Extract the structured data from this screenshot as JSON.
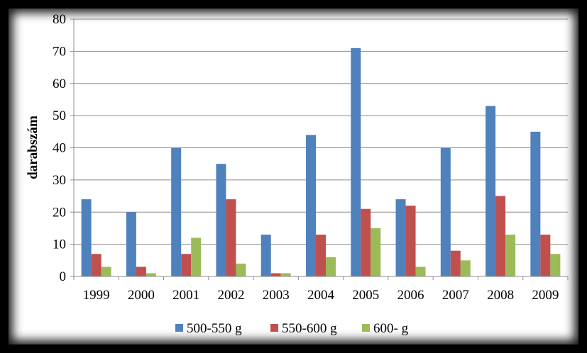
{
  "chart_data": {
    "type": "bar",
    "categories": [
      "1999",
      "2000",
      "2001",
      "2002",
      "2003",
      "2004",
      "2005",
      "2006",
      "2007",
      "2008",
      "2009"
    ],
    "series": [
      {
        "name": "500-550 g",
        "color": "#4F81BD",
        "values": [
          24,
          20,
          40,
          35,
          13,
          44,
          71,
          24,
          40,
          53,
          45
        ]
      },
      {
        "name": "550-600 g",
        "color": "#C0504D",
        "values": [
          7,
          3,
          7,
          24,
          1,
          13,
          21,
          22,
          8,
          25,
          13
        ]
      },
      {
        "name": "600- g",
        "color": "#9BBB59",
        "values": [
          3,
          1,
          12,
          4,
          1,
          6,
          15,
          3,
          5,
          13,
          7
        ]
      }
    ],
    "title": "",
    "xlabel": "",
    "ylabel": "darabszám",
    "ylim": [
      0,
      80
    ],
    "yticks": [
      0,
      10,
      20,
      30,
      40,
      50,
      60,
      70,
      80
    ],
    "grid": true,
    "legend": "bottom"
  }
}
